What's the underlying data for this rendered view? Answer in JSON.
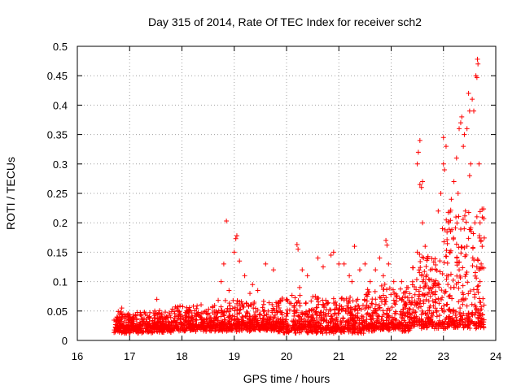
{
  "chart_data": {
    "type": "scatter",
    "title": "Day 315 of 2014, Rate Of TEC Index for receiver sch2",
    "xlabel": "GPS time / hours",
    "ylabel": "ROTI / TECUs",
    "xlim": [
      16,
      24
    ],
    "ylim": [
      0,
      0.5
    ],
    "xticks": [
      "16",
      "17",
      "18",
      "19",
      "20",
      "21",
      "22",
      "23",
      "24"
    ],
    "yticks": [
      "0",
      "0.05",
      "0.1",
      "0.15",
      "0.2",
      "0.25",
      "0.3",
      "0.35",
      "0.4",
      "0.45",
      "0.5"
    ],
    "grid": true,
    "marker": "+",
    "color": "#ff0000",
    "series": [
      {
        "name": "ROTI",
        "highlights": [
          [
            16.85,
            0.055
          ],
          [
            17.3,
            0.045
          ],
          [
            17.48,
            0.05
          ],
          [
            17.52,
            0.07
          ],
          [
            17.9,
            0.055
          ],
          [
            18.85,
            0.203
          ],
          [
            18.8,
            0.13
          ],
          [
            18.75,
            0.1
          ],
          [
            18.9,
            0.085
          ],
          [
            19.05,
            0.178
          ],
          [
            19.03,
            0.173
          ],
          [
            19.0,
            0.15
          ],
          [
            19.1,
            0.135
          ],
          [
            19.2,
            0.11
          ],
          [
            19.35,
            0.095
          ],
          [
            19.6,
            0.13
          ],
          [
            19.75,
            0.12
          ],
          [
            19.45,
            0.085
          ],
          [
            19.3,
            0.08
          ],
          [
            20.2,
            0.163
          ],
          [
            20.22,
            0.155
          ],
          [
            20.3,
            0.12
          ],
          [
            20.4,
            0.11
          ],
          [
            20.25,
            0.09
          ],
          [
            20.6,
            0.14
          ],
          [
            20.7,
            0.125
          ],
          [
            20.55,
            0.075
          ],
          [
            20.9,
            0.15
          ],
          [
            20.85,
            0.145
          ],
          [
            21.0,
            0.13
          ],
          [
            21.1,
            0.13
          ],
          [
            21.2,
            0.11
          ],
          [
            21.3,
            0.16
          ],
          [
            21.25,
            0.1
          ],
          [
            21.4,
            0.12
          ],
          [
            21.5,
            0.13
          ],
          [
            21.6,
            0.1
          ],
          [
            21.7,
            0.12
          ],
          [
            21.78,
            0.14
          ],
          [
            21.9,
            0.17
          ],
          [
            21.92,
            0.162
          ],
          [
            21.95,
            0.13
          ],
          [
            21.85,
            0.11
          ],
          [
            22.05,
            0.1
          ],
          [
            22.2,
            0.1
          ],
          [
            22.3,
            0.09
          ],
          [
            22.5,
            0.15
          ],
          [
            22.52,
            0.32
          ],
          [
            22.55,
            0.34
          ],
          [
            22.5,
            0.3
          ],
          [
            22.55,
            0.265
          ],
          [
            22.6,
            0.27
          ],
          [
            22.58,
            0.26
          ],
          [
            22.6,
            0.2
          ],
          [
            22.65,
            0.16
          ],
          [
            22.7,
            0.14
          ],
          [
            22.75,
            0.12
          ],
          [
            22.6,
            0.1
          ],
          [
            22.8,
            0.08
          ],
          [
            22.9,
            0.22
          ],
          [
            22.95,
            0.25
          ],
          [
            22.98,
            0.19
          ],
          [
            23.0,
            0.3
          ],
          [
            23.02,
            0.29
          ],
          [
            23.05,
            0.33
          ],
          [
            23.0,
            0.345
          ],
          [
            23.1,
            0.2
          ],
          [
            23.12,
            0.15
          ],
          [
            23.15,
            0.24
          ],
          [
            23.2,
            0.27
          ],
          [
            23.25,
            0.31
          ],
          [
            23.28,
            0.25
          ],
          [
            23.3,
            0.36
          ],
          [
            23.33,
            0.37
          ],
          [
            23.35,
            0.38
          ],
          [
            23.38,
            0.33
          ],
          [
            23.4,
            0.35
          ],
          [
            23.42,
            0.22
          ],
          [
            23.45,
            0.36
          ],
          [
            23.48,
            0.42
          ],
          [
            23.5,
            0.39
          ],
          [
            23.52,
            0.3
          ],
          [
            23.55,
            0.41
          ],
          [
            23.58,
            0.39
          ],
          [
            23.62,
            0.45
          ],
          [
            23.64,
            0.447
          ],
          [
            23.66,
            0.47
          ],
          [
            23.65,
            0.478
          ],
          [
            23.6,
            0.2
          ],
          [
            23.68,
            0.3
          ],
          [
            23.7,
            0.2
          ],
          [
            23.72,
            0.17
          ],
          [
            23.74,
            0.16
          ],
          [
            23.68,
            0.12
          ],
          [
            23.7,
            0.1
          ],
          [
            23.5,
            0.28
          ],
          [
            23.45,
            0.16
          ],
          [
            23.3,
            0.12
          ],
          [
            23.2,
            0.09
          ],
          [
            23.6,
            0.06
          ]
        ]
      }
    ]
  }
}
